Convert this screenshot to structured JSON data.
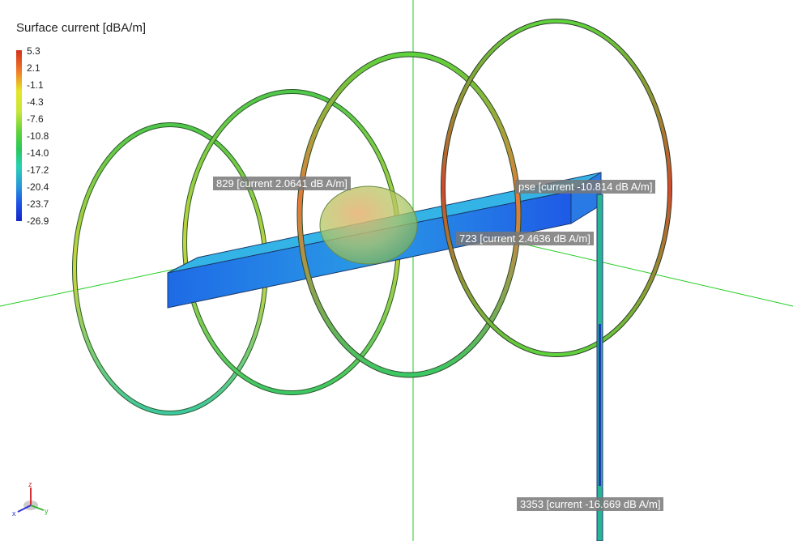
{
  "legend": {
    "title": "Surface current [dBA/m]",
    "ticks": [
      "5.3",
      "2.1",
      "-1.1",
      "-4.3",
      "-7.6",
      "-10.8",
      "-14.0",
      "-17.2",
      "-20.4",
      "-23.7",
      "-26.9"
    ]
  },
  "probes": [
    {
      "text": "829 [current 2.0641 dB A/m]"
    },
    {
      "text": "pse [current -10.814 dB A/m]"
    },
    {
      "text": "723 [current 2.4636 dB A/m]"
    },
    {
      "text": "3353 [current -16.669 dB A/m]"
    }
  ],
  "colors": {
    "axis": "#22cc22",
    "cooler_blue": "#1e6ae6",
    "ring_green": "#5fd23c",
    "ring_orange": "#e8783a",
    "ring_red": "#d24a2a",
    "sphere": "#c8b45a"
  },
  "triad": {
    "icon": "axis-triad-icon",
    "labels": [
      "z",
      "x",
      "y"
    ]
  }
}
